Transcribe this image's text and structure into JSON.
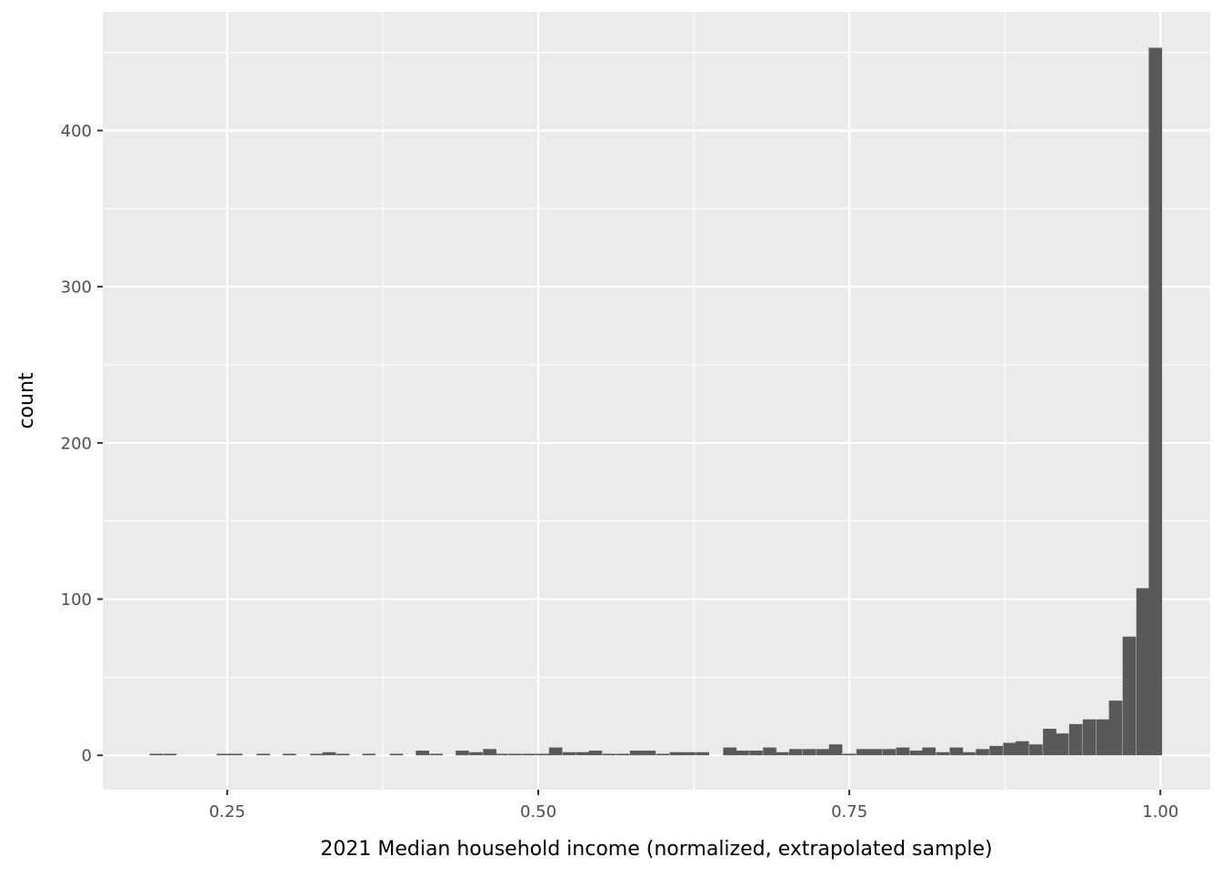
{
  "chart_data": {
    "type": "bar",
    "title": "",
    "xlabel": "2021 Median household income (normalized, extrapolated sample)",
    "ylabel": "count",
    "xlim": [
      0.15,
      1.04
    ],
    "ylim": [
      -22,
      476
    ],
    "x_ticks": [
      {
        "value": 0.25,
        "label": "0.25"
      },
      {
        "value": 0.5,
        "label": "0.50"
      },
      {
        "value": 0.75,
        "label": "0.75"
      },
      {
        "value": 1.0,
        "label": "1.00"
      }
    ],
    "y_ticks": [
      {
        "value": 0,
        "label": "0"
      },
      {
        "value": 100,
        "label": "100"
      },
      {
        "value": 200,
        "label": "200"
      },
      {
        "value": 300,
        "label": "300"
      },
      {
        "value": 400,
        "label": "400"
      }
    ],
    "bin_width": 0.0107,
    "bin_centers": [
      0.193,
      0.204,
      0.247,
      0.257,
      0.279,
      0.3,
      0.322,
      0.332,
      0.343,
      0.364,
      0.386,
      0.407,
      0.418,
      0.439,
      0.45,
      0.461,
      0.471,
      0.482,
      0.493,
      0.504,
      0.514,
      0.525,
      0.536,
      0.546,
      0.557,
      0.568,
      0.579,
      0.589,
      0.6,
      0.611,
      0.621,
      0.632,
      0.654,
      0.664,
      0.675,
      0.686,
      0.696,
      0.707,
      0.718,
      0.729,
      0.739,
      0.75,
      0.761,
      0.771,
      0.782,
      0.793,
      0.804,
      0.814,
      0.825,
      0.836,
      0.846,
      0.857,
      0.868,
      0.879,
      0.889,
      0.9,
      0.911,
      0.921,
      0.932,
      0.943,
      0.954,
      0.964,
      0.975,
      0.986,
      0.996
    ],
    "values": [
      1,
      1,
      1,
      1,
      1,
      1,
      1,
      2,
      1,
      1,
      1,
      3,
      1,
      3,
      2,
      4,
      1,
      1,
      1,
      1,
      5,
      2,
      2,
      3,
      1,
      1,
      3,
      3,
      1,
      2,
      2,
      2,
      5,
      3,
      3,
      5,
      2,
      4,
      4,
      4,
      7,
      1,
      4,
      4,
      4,
      5,
      3,
      5,
      2,
      5,
      2,
      4,
      6,
      8,
      9,
      7,
      17,
      14,
      20,
      23,
      23,
      35,
      76,
      107,
      453
    ],
    "grid": true,
    "legend": "none",
    "colors": {
      "panel": "#ebebeb",
      "grid": "#ffffff",
      "bar": "#595959",
      "tick_label": "#4d4d4d",
      "tick_mark": "#333333",
      "axis_title": "#000000"
    }
  }
}
